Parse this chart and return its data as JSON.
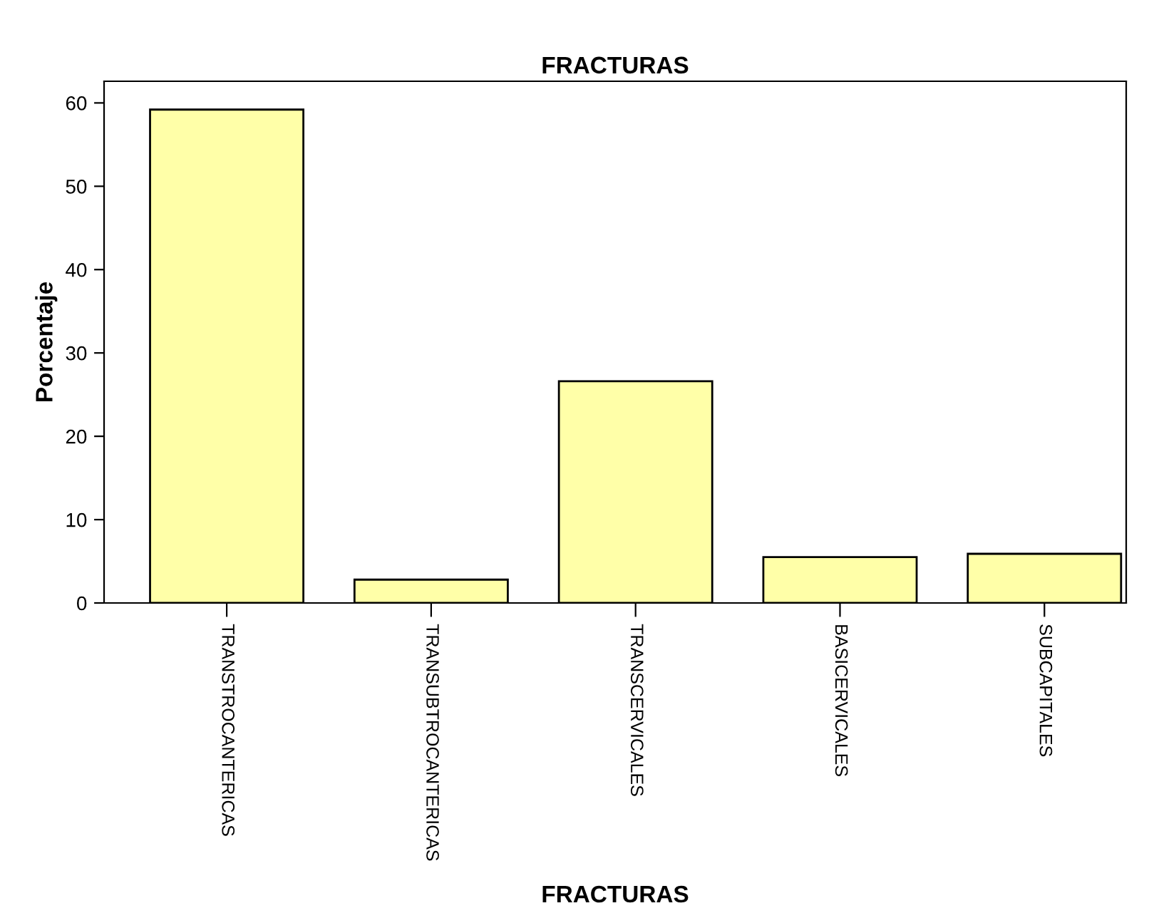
{
  "chart_data": {
    "type": "bar",
    "title": "FRACTURAS",
    "xlabel": "FRACTURAS",
    "ylabel": "Porcentaje",
    "categories": [
      "TRANSTROCANTERICAS",
      "TRANSUBTROCANTERICAS",
      "TRANSCERVICALES",
      "BASICERVICALES",
      "SUBCAPITALES"
    ],
    "values": [
      59.2,
      2.8,
      26.6,
      5.5,
      5.9
    ],
    "color": "#ffffa8",
    "ylim": [
      0,
      62.6
    ],
    "yticks": [
      0,
      10,
      20,
      30,
      40,
      50,
      60
    ],
    "grid": false
  }
}
